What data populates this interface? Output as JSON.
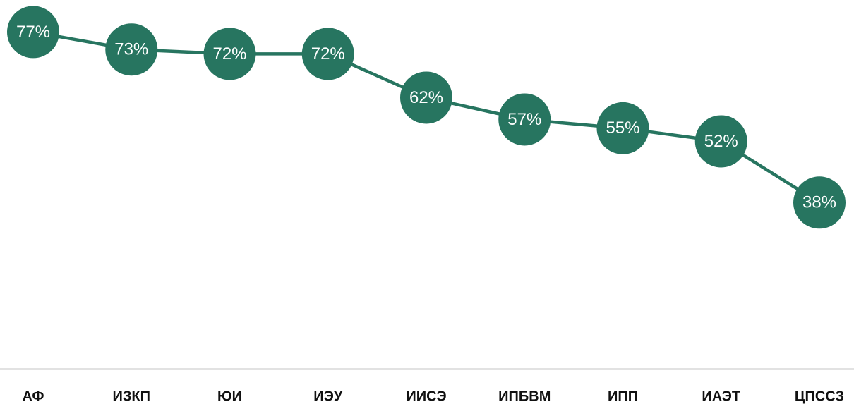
{
  "chart_data": {
    "type": "line",
    "categories": [
      "АФ",
      "ИЗКП",
      "ЮИ",
      "ИЭУ",
      "ИИСЭ",
      "ИПБВМ",
      "ИПП",
      "ИАЭТ",
      "ЦПССЗ"
    ],
    "series": [
      {
        "color": "#277560",
        "values": [
          77,
          73,
          72,
          72,
          62,
          57,
          55,
          52,
          38
        ],
        "value_labels": [
          "77%",
          "73%",
          "72%",
          "72%",
          "62%",
          "57%",
          "55%",
          "52%",
          "38%"
        ]
      }
    ],
    "ylim": [
      0,
      84
    ]
  }
}
